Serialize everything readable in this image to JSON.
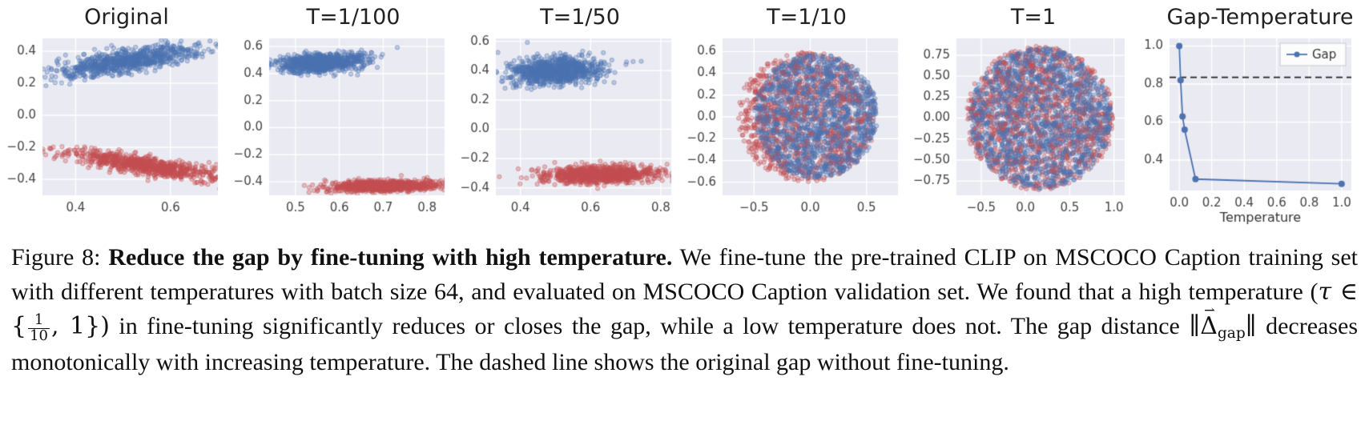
{
  "caption": {
    "label": "Figure 8: ",
    "bold": "Reduce the gap by fine-tuning with high temperature.",
    "part1": " We fine-tune the pre-trained CLIP on MSCOCO Caption training set with different temperatures with batch size 64, and evaluated on MSCOCO Caption validation set. We found that a high temperature (",
    "math": {
      "tau": "τ",
      "element": " ∈ {",
      "frac_num": "1",
      "frac_den": "10",
      "close": ", 1})"
    },
    "part2": " in fine-tuning significantly reduces or closes the gap, while a low temperature does not. The gap distance ",
    "norm": {
      "open": "∥",
      "arrow": "⇀",
      "delta": "Δ",
      "sub": "gap",
      "close": "∥"
    },
    "part3": " decreases monotonically with increasing temperature. The dashed line shows the original gap without fine-tuning."
  },
  "chart_data": [
    {
      "type": "scatter",
      "title": "Original",
      "xlim": [
        0.33,
        0.7
      ],
      "ylim": [
        -0.5,
        0.48
      ],
      "xticks": {
        "vals": [
          0.4,
          0.6
        ],
        "labels": [
          "0.4",
          "0.6"
        ]
      },
      "yticks": {
        "vals": [
          -0.4,
          -0.2,
          0.0,
          0.2,
          0.4
        ],
        "labels": [
          "−0.4",
          "−0.2",
          "0.0",
          "0.2",
          "0.4"
        ]
      },
      "clusters": [
        {
          "name": "blue-cluster",
          "color": "#4c72b0",
          "n": 800,
          "cx": 0.51,
          "cy": 0.34,
          "sx": 0.085,
          "sy": 0.03,
          "angle": 28
        },
        {
          "name": "red-cluster",
          "color": "#c44e52",
          "n": 800,
          "cx": 0.54,
          "cy": -0.31,
          "sx": 0.09,
          "sy": 0.026,
          "angle": -27
        }
      ]
    },
    {
      "type": "scatter",
      "title": "T=1/100",
      "xlim": [
        0.44,
        0.84
      ],
      "ylim": [
        -0.5,
        0.66
      ],
      "xticks": {
        "vals": [
          0.5,
          0.6,
          0.7,
          0.8
        ],
        "labels": [
          "0.5",
          "0.6",
          "0.7",
          "0.8"
        ]
      },
      "yticks": {
        "vals": [
          -0.4,
          -0.2,
          0.0,
          0.2,
          0.4,
          0.6
        ],
        "labels": [
          "−0.4",
          "−0.2",
          "0.0",
          "0.2",
          "0.4",
          "0.6"
        ]
      },
      "clusters": [
        {
          "name": "blue-cluster",
          "color": "#4c72b0",
          "n": 900,
          "cx": 0.56,
          "cy": 0.48,
          "sx": 0.05,
          "sy": 0.033,
          "angle": 14
        },
        {
          "name": "red-cluster",
          "color": "#c44e52",
          "n": 900,
          "cx": 0.7,
          "cy": -0.43,
          "sx": 0.062,
          "sy": 0.019,
          "angle": 4
        }
      ]
    },
    {
      "type": "scatter",
      "title": "T=1/50",
      "xlim": [
        0.33,
        0.83
      ],
      "ylim": [
        -0.45,
        0.62
      ],
      "xticks": {
        "vals": [
          0.4,
          0.6,
          0.8
        ],
        "labels": [
          "0.4",
          "0.6",
          "0.8"
        ]
      },
      "yticks": {
        "vals": [
          -0.4,
          -0.2,
          0.0,
          0.2,
          0.4,
          0.6
        ],
        "labels": [
          "−0.4",
          "−0.2",
          "0.0",
          "0.2",
          "0.4",
          "0.6"
        ]
      },
      "clusters": [
        {
          "name": "blue-cluster",
          "color": "#4c72b0",
          "n": 900,
          "cx": 0.5,
          "cy": 0.4,
          "sx": 0.07,
          "sy": 0.046,
          "angle": 12
        },
        {
          "name": "red-cluster",
          "color": "#c44e52",
          "n": 900,
          "cx": 0.63,
          "cy": -0.31,
          "sx": 0.085,
          "sy": 0.03,
          "angle": 3
        }
      ]
    },
    {
      "type": "scatter",
      "title": "T=1/10",
      "xlim": [
        -0.78,
        0.78
      ],
      "ylim": [
        -0.72,
        0.72
      ],
      "xticks": {
        "vals": [
          -0.5,
          0.0,
          0.5
        ],
        "labels": [
          "−0.5",
          "0.0",
          "0.5"
        ]
      },
      "yticks": {
        "vals": [
          -0.6,
          -0.4,
          -0.2,
          0.0,
          0.2,
          0.4,
          0.6
        ],
        "labels": [
          "−0.6",
          "−0.4",
          "−0.2",
          "0.0",
          "0.2",
          "0.4",
          "0.6"
        ]
      },
      "clusters": [
        {
          "name": "red-cluster",
          "color": "#c44e52",
          "dist": "disk",
          "n": 950,
          "cx": -0.03,
          "cy": 0.0,
          "sx": 0.62,
          "sy": 0.6,
          "angle": 0
        },
        {
          "name": "blue-cluster",
          "color": "#4c72b0",
          "dist": "disk",
          "n": 1450,
          "cx": 0.05,
          "cy": 0.01,
          "sx": 0.55,
          "sy": 0.57,
          "angle": 0
        },
        {
          "name": "red-sprinkle",
          "color": "#c44e52",
          "dist": "disk",
          "n": 170,
          "cx": -0.05,
          "cy": -0.02,
          "sx": 0.55,
          "sy": 0.5,
          "angle": 0
        }
      ]
    },
    {
      "type": "scatter",
      "title": "T=1",
      "xlim": [
        -0.78,
        1.12
      ],
      "ylim": [
        -0.92,
        0.95
      ],
      "xticks": {
        "vals": [
          -0.5,
          0.0,
          0.5,
          1.0
        ],
        "labels": [
          "−0.5",
          "0.0",
          "0.5",
          "1.0"
        ]
      },
      "yticks": {
        "vals": [
          -0.75,
          -0.5,
          -0.25,
          0.0,
          0.25,
          0.5,
          0.75
        ],
        "labels": [
          "−0.75",
          "−0.50",
          "−0.25",
          "0.00",
          "0.25",
          "0.50",
          "0.75"
        ]
      },
      "clusters": [
        {
          "name": "red-cluster",
          "color": "#c44e52",
          "dist": "disk",
          "n": 1050,
          "cx": 0.16,
          "cy": 0.0,
          "sx": 0.84,
          "sy": 0.86,
          "angle": 0
        },
        {
          "name": "blue-cluster",
          "color": "#4c72b0",
          "dist": "disk",
          "n": 1550,
          "cx": 0.17,
          "cy": 0.0,
          "sx": 0.8,
          "sy": 0.84,
          "angle": 0
        },
        {
          "name": "red-sprinkle",
          "color": "#c44e52",
          "dist": "disk",
          "n": 230,
          "cx": 0.12,
          "cy": 0.04,
          "sx": 0.75,
          "sy": 0.75,
          "angle": 0
        }
      ]
    },
    {
      "type": "line",
      "title": "Gap-Temperature",
      "xlabel": "Temperature",
      "xlim": [
        -0.06,
        1.06
      ],
      "ylim": [
        0.24,
        1.04
      ],
      "xticks": {
        "vals": [
          0.0,
          0.2,
          0.4,
          0.6,
          0.8,
          1.0
        ],
        "labels": [
          "0.0",
          "0.2",
          "0.4",
          "0.6",
          "0.8",
          "1.0"
        ]
      },
      "yticks": {
        "vals": [
          0.4,
          0.6,
          0.8,
          1.0
        ],
        "labels": [
          "0.4",
          "0.6",
          "0.8",
          "1.0"
        ]
      },
      "dashed_line_y": 0.835,
      "series": [
        {
          "name": "Gap",
          "color": "#4c72b0",
          "points": [
            [
              0.0,
              1.0
            ],
            [
              0.008,
              0.82
            ],
            [
              0.02,
              0.63
            ],
            [
              0.033,
              0.56
            ],
            [
              0.1,
              0.3
            ],
            [
              1.0,
              0.275
            ]
          ]
        }
      ],
      "legend": {
        "label": "Gap",
        "position": "top-right"
      }
    }
  ]
}
